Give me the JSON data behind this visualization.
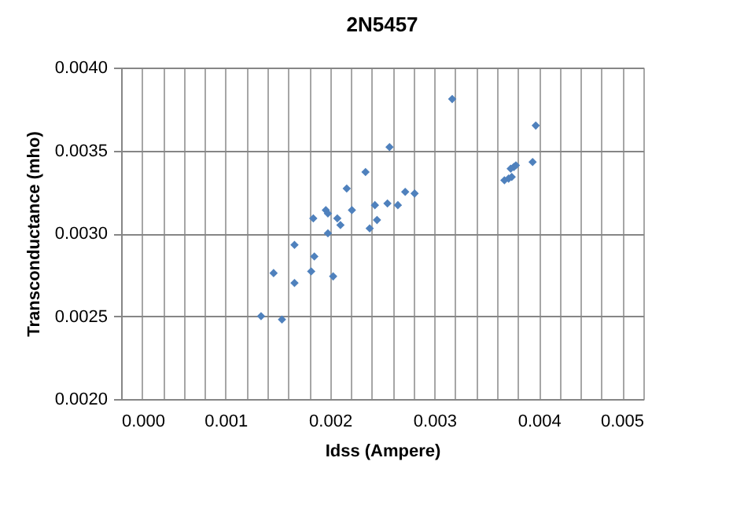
{
  "chart_data": {
    "type": "scatter",
    "title": "2N5457",
    "xlabel": "Idss (Ampere)",
    "ylabel": "Transconductance  (mho)",
    "x": [
      0.00134,
      0.00154,
      0.00146,
      0.00166,
      0.00166,
      0.00182,
      0.00185,
      0.00184,
      0.00196,
      0.00198,
      0.00198,
      0.00203,
      0.00207,
      0.0021,
      0.00216,
      0.00221,
      0.00234,
      0.00238,
      0.00243,
      0.00245,
      0.00255,
      0.00257,
      0.00265,
      0.00272,
      0.00281,
      0.00317,
      0.00397,
      0.00394,
      0.00367,
      0.00371,
      0.00374,
      0.00373,
      0.00376,
      0.00378
    ],
    "series": [
      {
        "color": "#4f81bd",
        "values": [
          0.0025,
          0.00248,
          0.00276,
          0.00293,
          0.0027,
          0.00277,
          0.00286,
          0.00309,
          0.00314,
          0.00312,
          0.003,
          0.00274,
          0.00309,
          0.00305,
          0.00327,
          0.00314,
          0.00337,
          0.00303,
          0.00317,
          0.00308,
          0.00318,
          0.00352,
          0.00317,
          0.00325,
          0.00324,
          0.00381,
          0.00365,
          0.00343,
          0.00332,
          0.00333,
          0.00334,
          0.00339,
          0.0034,
          0.00341
        ]
      }
    ],
    "xlim": [
      0,
      0.005
    ],
    "xticks": [
      {
        "value": 0,
        "label": "0.000"
      },
      {
        "value": 0.0002,
        "label": null
      },
      {
        "value": 0.0004,
        "label": null
      },
      {
        "value": 0.0006,
        "label": null
      },
      {
        "value": 0.0008,
        "label": null
      },
      {
        "value": 0.001,
        "label": "0.001"
      },
      {
        "value": 0.0012,
        "label": null
      },
      {
        "value": 0.0014,
        "label": null
      },
      {
        "value": 0.0016,
        "label": null
      },
      {
        "value": 0.0018,
        "label": null
      },
      {
        "value": 0.002,
        "label": "0.002"
      },
      {
        "value": 0.0022,
        "label": null
      },
      {
        "value": 0.0024,
        "label": null
      },
      {
        "value": 0.0026,
        "label": null
      },
      {
        "value": 0.0028,
        "label": null
      },
      {
        "value": 0.003,
        "label": "0.003"
      },
      {
        "value": 0.0032,
        "label": null
      },
      {
        "value": 0.0034,
        "label": null
      },
      {
        "value": 0.0036,
        "label": null
      },
      {
        "value": 0.0038,
        "label": null
      },
      {
        "value": 0.004,
        "label": "0.004"
      },
      {
        "value": 0.0042,
        "label": null
      },
      {
        "value": 0.0044,
        "label": null
      },
      {
        "value": 0.0046,
        "label": null
      },
      {
        "value": 0.0048,
        "label": null
      },
      {
        "value": 0.005,
        "label": "0.005"
      }
    ],
    "ylim": [
      0.002,
      0.004
    ],
    "yticks": [
      {
        "value": 0.002,
        "label": "0.0020"
      },
      {
        "value": 0.0025,
        "label": "0.0025"
      },
      {
        "value": 0.003,
        "label": "0.0030"
      },
      {
        "value": 0.0035,
        "label": "0.0035"
      },
      {
        "value": 0.004,
        "label": "0.0040"
      }
    ],
    "grid": true,
    "marker": "diamond",
    "legend": false
  }
}
